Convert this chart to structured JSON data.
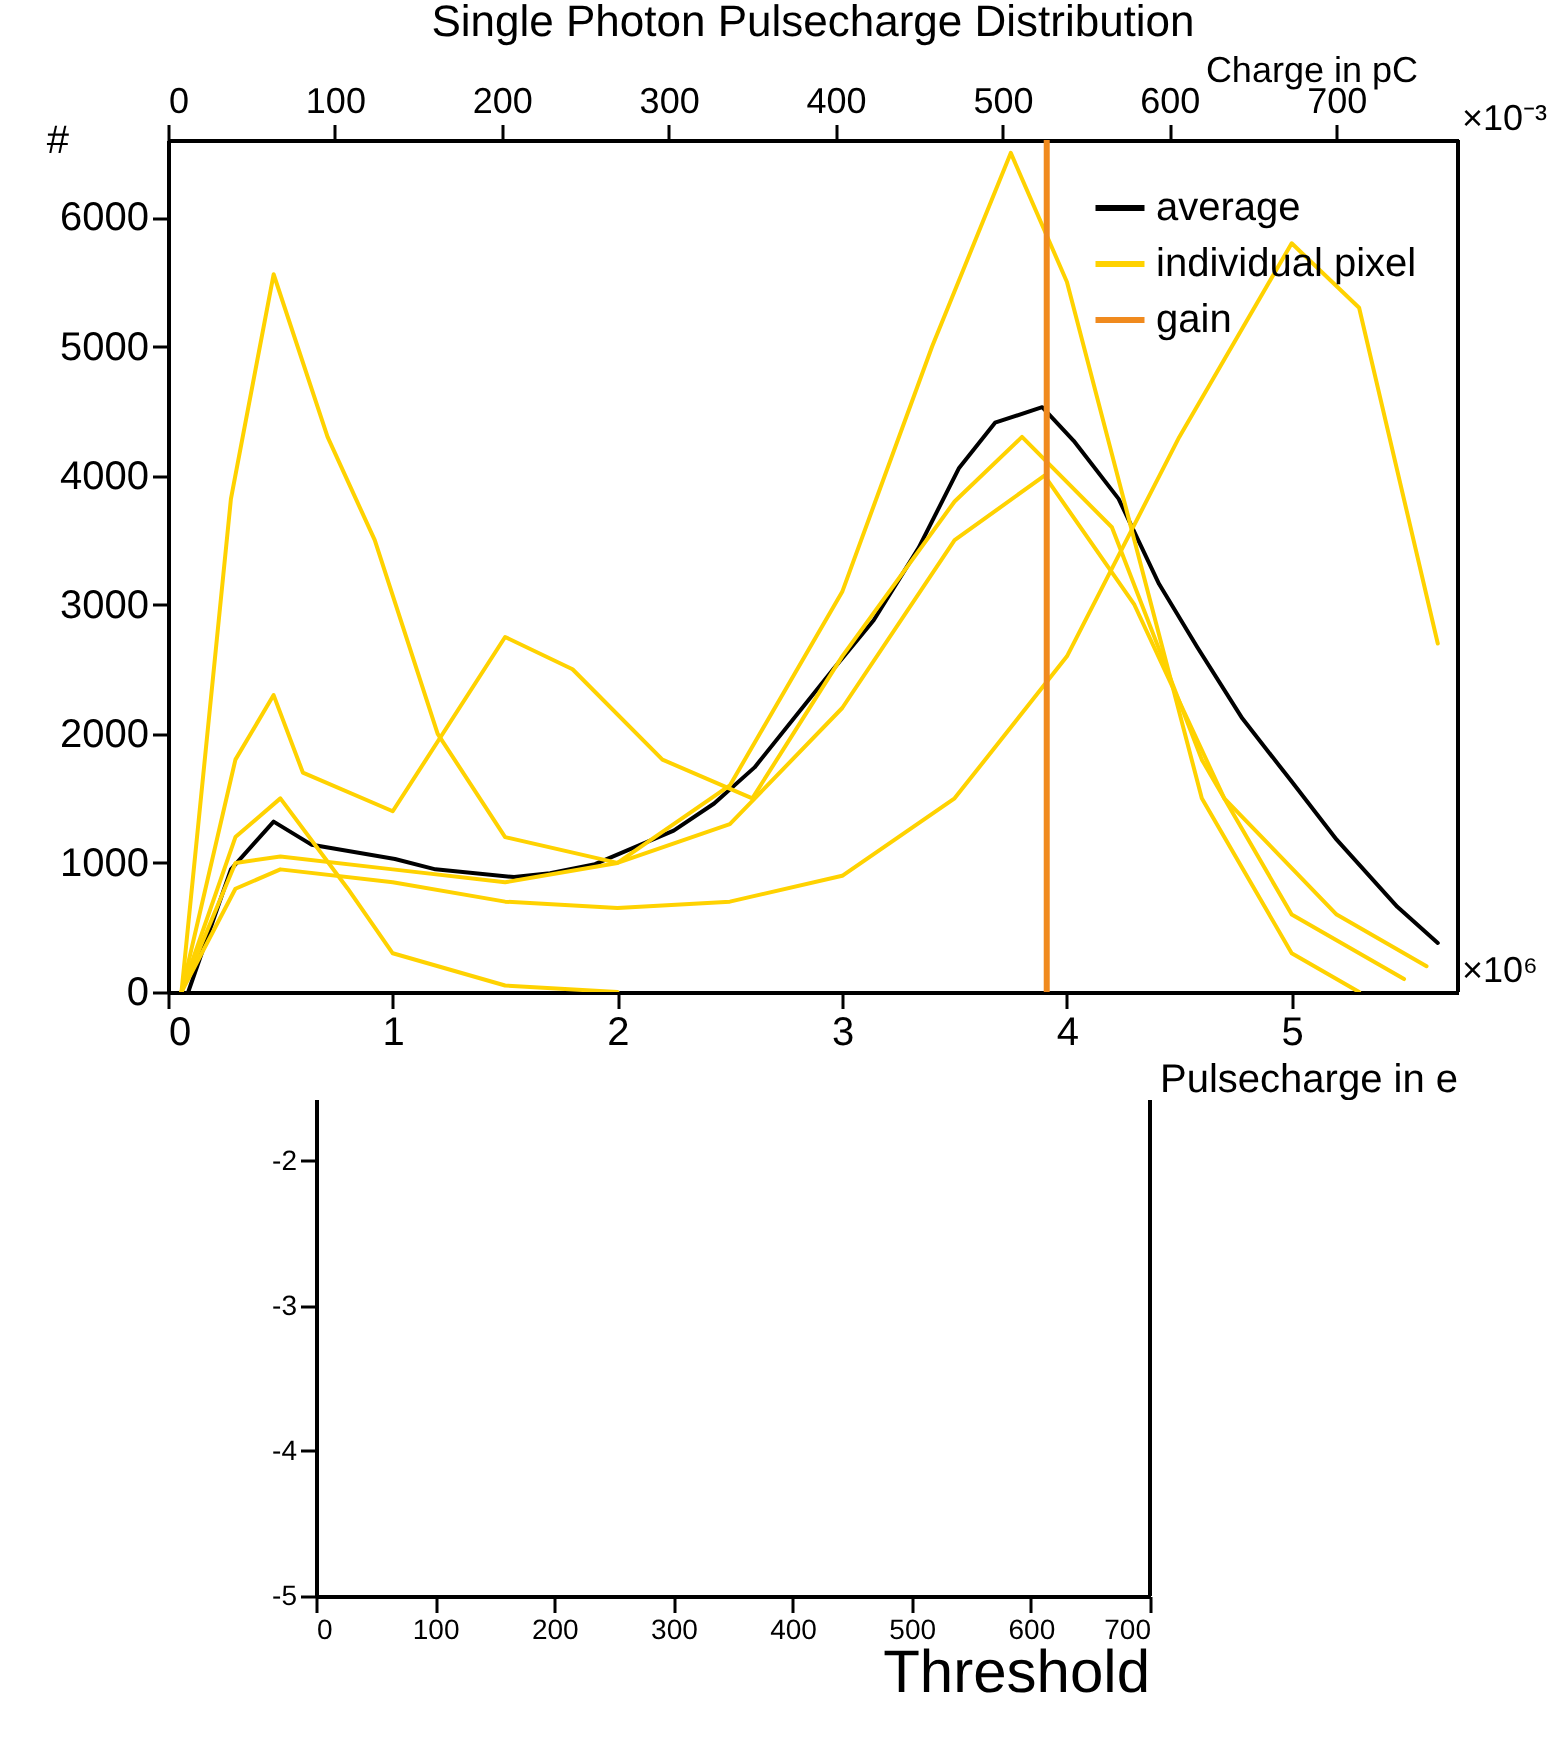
{
  "chart_data": [
    {
      "type": "line",
      "title": "Single Photon Pulsecharge Distribution",
      "xlabel": "Pulsecharge in e",
      "ylabel": "#",
      "x2label": "Charge in pC",
      "xlim": [
        0,
        5.74
      ],
      "xticks": [
        0,
        1,
        2,
        3,
        4,
        5
      ],
      "ylim": [
        0,
        6600
      ],
      "yticks": [
        0,
        1000,
        2000,
        3000,
        4000,
        5000,
        6000
      ],
      "x2lim": [
        0,
        773
      ],
      "x2ticks": [
        0,
        100,
        200,
        300,
        400,
        500,
        600,
        700
      ],
      "legend": "top right",
      "grid": false,
      "marker": "none",
      "line_style": "solid",
      "annotations": [
        "×10⁶",
        "×10⁻³"
      ],
      "series": [
        {
          "name": "average",
          "color": "#000000",
          "x": [
            0.09,
            0.28,
            0.47,
            0.64,
            1.01,
            1.19,
            1.54,
            1.7,
            1.9,
            2.25,
            2.43,
            2.61,
            2.96,
            3.14,
            3.34,
            3.52,
            3.68,
            3.89,
            4.03,
            4.23,
            4.41,
            4.58,
            4.78,
            5.0,
            5.2,
            5.47,
            5.65
          ],
          "values": [
            0,
            950,
            1320,
            1140,
            1030,
            950,
            890,
            920,
            990,
            1250,
            1460,
            1740,
            2500,
            2880,
            3440,
            4060,
            4410,
            4530,
            4270,
            3820,
            3160,
            2670,
            2120,
            1630,
            1180,
            660,
            380
          ]
        },
        {
          "name": "individual pixel",
          "color": "#ffd200",
          "x": [
            0.06,
            0.28,
            0.47,
            0.71,
            0.92,
            1.2,
            1.5,
            2.0,
            2.5,
            3.0,
            3.5,
            3.9,
            4.3,
            4.7,
            5.2,
            5.6
          ],
          "values": [
            0,
            3820,
            5560,
            4300,
            3500,
            2000,
            1200,
            1000,
            1300,
            2200,
            3500,
            4000,
            3000,
            1500,
            600,
            200
          ]
        },
        {
          "color": "#ffd200",
          "x": [
            0.06,
            0.3,
            0.47,
            0.6,
            1.0,
            1.5,
            1.8,
            2.2,
            2.6,
            3.0,
            3.5,
            3.8,
            4.2,
            4.6,
            5.0,
            5.5
          ],
          "values": [
            0,
            1800,
            2300,
            1700,
            1400,
            2750,
            2500,
            1800,
            1500,
            2600,
            3800,
            4300,
            3600,
            1800,
            600,
            100
          ]
        },
        {
          "color": "#ffd200",
          "x": [
            0.06,
            0.3,
            0.5,
            1.0,
            1.5,
            2.0,
            2.5,
            3.0,
            3.4,
            3.75,
            4.0,
            4.3,
            4.6,
            5.0,
            5.3
          ],
          "values": [
            0,
            1000,
            1050,
            950,
            850,
            1000,
            1600,
            3100,
            5000,
            6500,
            5500,
            3500,
            1500,
            300,
            0
          ]
        },
        {
          "color": "#ffd200",
          "x": [
            0.06,
            0.3,
            0.5,
            1.0,
            1.5,
            2.0,
            2.5,
            3.0,
            3.5,
            4.0,
            4.5,
            5.0,
            5.3,
            5.65
          ],
          "values": [
            0,
            800,
            950,
            850,
            700,
            650,
            700,
            900,
            1500,
            2600,
            4300,
            5800,
            5300,
            2700
          ]
        },
        {
          "color": "#ffd200",
          "x": [
            0.06,
            0.3,
            0.5,
            0.8,
            1.0,
            1.5,
            2.0
          ],
          "values": [
            0,
            1200,
            1500,
            800,
            300,
            50,
            0
          ]
        }
      ],
      "ref_lines": [
        {
          "axis": "x",
          "value": 3.91,
          "label": "gain",
          "color": "#f08a1e"
        }
      ]
    },
    {
      "type": "line",
      "xlabel": "Threshold",
      "xlim": [
        0,
        700
      ],
      "xticks": [
        0,
        100,
        200,
        300,
        400,
        500,
        600,
        700
      ],
      "ylim": [
        -5,
        -1.25
      ],
      "yticks": [
        -5,
        -4,
        -3,
        -2
      ],
      "grid": false
    }
  ]
}
